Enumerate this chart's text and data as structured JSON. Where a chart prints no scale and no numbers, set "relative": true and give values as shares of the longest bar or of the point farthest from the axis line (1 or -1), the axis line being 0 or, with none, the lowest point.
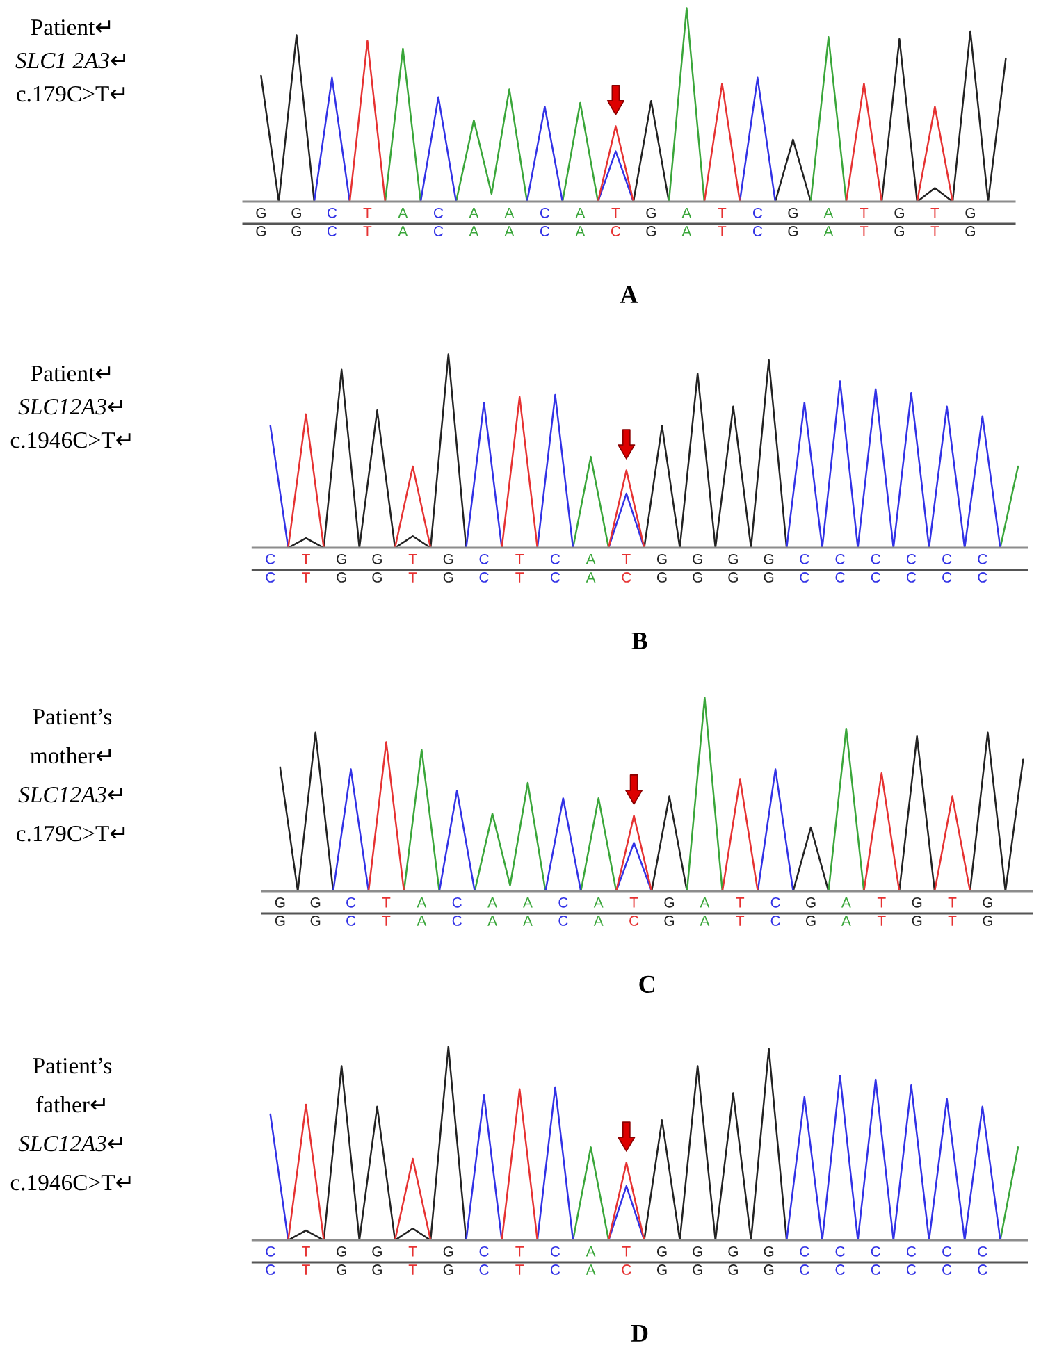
{
  "chart_data": [
    {
      "type": "line",
      "relative": true,
      "xlabel": "A",
      "annotations": [
        "Patient↵",
        "SLC1 2A3↵",
        "c.179C>T↵"
      ],
      "categories": [
        "G\nG",
        null,
        "G\nG",
        null,
        "C\nC",
        null,
        "T\nT",
        null,
        "A\nA",
        null,
        "C\nC",
        null,
        "A\nA",
        null,
        "A\nA",
        null,
        "C\nC",
        null,
        "A\nA",
        null,
        "T\nC",
        null,
        "G\nG",
        null,
        "A\nA",
        null,
        "T\nT",
        null,
        "C\nC",
        null,
        "G\nG",
        null,
        "A\nA",
        null,
        "T\nT",
        null,
        "G\nG",
        null,
        "T\nT",
        null,
        "G\nG",
        null,
        null
      ],
      "series": [
        {
          "color": "#222222",
          "values": [
            0.65,
            0,
            0.86,
            0,
            null,
            null,
            null,
            null,
            null,
            null,
            null,
            null,
            null,
            null,
            null,
            null,
            null,
            null,
            null,
            null,
            null,
            0,
            0.52,
            0,
            null,
            null,
            null,
            null,
            null,
            0,
            0.32,
            0,
            null,
            null,
            null,
            0,
            0.84,
            0,
            0.07,
            0,
            0.88,
            0,
            0.74
          ]
        },
        {
          "color": "#3aa63a",
          "values": [
            null,
            null,
            null,
            null,
            null,
            null,
            null,
            0,
            0.79,
            0,
            null,
            0,
            0.42,
            0.04,
            0.58,
            0,
            null,
            0,
            0.51,
            0,
            null,
            null,
            null,
            0,
            1,
            0,
            null,
            null,
            null,
            null,
            null,
            0,
            0.85,
            0,
            null,
            null,
            null,
            null,
            null,
            null,
            null,
            null,
            null
          ]
        },
        {
          "color": "#3232e6",
          "values": [
            null,
            null,
            null,
            0,
            0.64,
            0,
            null,
            null,
            null,
            0,
            0.54,
            0,
            null,
            null,
            null,
            0,
            0.49,
            0,
            null,
            0,
            0.26,
            0,
            null,
            null,
            null,
            null,
            null,
            0,
            0.64,
            0,
            null,
            null,
            null,
            null,
            null,
            null,
            null,
            null,
            null,
            null,
            null,
            null,
            null
          ]
        },
        {
          "color": "#e63232",
          "values": [
            null,
            null,
            null,
            null,
            null,
            0,
            0.83,
            0,
            null,
            null,
            null,
            null,
            null,
            null,
            null,
            null,
            null,
            null,
            null,
            0,
            0.39,
            0,
            null,
            null,
            null,
            0,
            0.61,
            0,
            null,
            null,
            null,
            null,
            null,
            0,
            0.61,
            0,
            null,
            0,
            0.49,
            0,
            null,
            null,
            null
          ]
        }
      ]
    },
    {
      "type": "line",
      "relative": true,
      "xlabel": "B",
      "annotations": [
        "Patient↵",
        "SLC12A3↵",
        "c.1946C>T↵"
      ],
      "categories": [
        "C\nC",
        null,
        "T\nT",
        null,
        "G\nG",
        null,
        "G\nG",
        null,
        "T\nT",
        null,
        "G\nG",
        null,
        "C\nC",
        null,
        "T\nT",
        null,
        "C\nC",
        null,
        "A\nA",
        null,
        "T\nC",
        null,
        "G\nG",
        null,
        "G\nG",
        null,
        "G\nG",
        null,
        "G\nG",
        null,
        "C\nC",
        null,
        "C\nC",
        null,
        "C\nC",
        null,
        "C\nC",
        null,
        "C\nC",
        null,
        "C\nC",
        null,
        null
      ],
      "series": [
        {
          "color": "#222222",
          "values": [
            null,
            0,
            0.05,
            0,
            0.92,
            0,
            0.71,
            0,
            0.06,
            0,
            1,
            0,
            null,
            null,
            null,
            null,
            null,
            null,
            null,
            null,
            null,
            0,
            0.63,
            0,
            0.9,
            0,
            0.73,
            0,
            0.97,
            0,
            null,
            null,
            null,
            null,
            null,
            null,
            null,
            null,
            null,
            null,
            null,
            null,
            null
          ]
        },
        {
          "color": "#3aa63a",
          "values": [
            null,
            null,
            null,
            null,
            null,
            null,
            null,
            null,
            null,
            null,
            null,
            null,
            null,
            null,
            null,
            null,
            null,
            0,
            0.47,
            0,
            null,
            null,
            null,
            null,
            null,
            null,
            null,
            null,
            null,
            null,
            null,
            null,
            null,
            null,
            null,
            null,
            null,
            null,
            null,
            null,
            null,
            0,
            0.42
          ]
        },
        {
          "color": "#3232e6",
          "values": [
            0.63,
            0,
            null,
            null,
            null,
            null,
            null,
            null,
            null,
            null,
            null,
            0,
            0.75,
            0,
            null,
            0,
            0.79,
            0,
            null,
            0,
            0.28,
            0,
            null,
            null,
            null,
            null,
            null,
            null,
            null,
            0,
            0.75,
            0,
            0.86,
            0,
            0.82,
            0,
            0.8,
            0,
            0.73,
            0,
            0.68,
            0,
            null
          ]
        },
        {
          "color": "#e63232",
          "values": [
            null,
            0,
            0.69,
            0,
            null,
            null,
            null,
            0,
            0.42,
            0,
            null,
            null,
            null,
            0,
            0.78,
            0,
            null,
            null,
            null,
            0,
            0.4,
            0,
            null,
            null,
            null,
            null,
            null,
            null,
            null,
            null,
            null,
            null,
            null,
            null,
            null,
            null,
            null,
            null,
            null,
            null,
            null,
            null,
            null
          ]
        }
      ]
    },
    {
      "type": "line",
      "relative": true,
      "xlabel": "C",
      "annotations": [
        "Patient’s",
        "mother↵",
        "SLC12A3↵",
        "c.179C>T↵"
      ],
      "categories": [
        "G\nG",
        null,
        "G\nG",
        null,
        "C\nC",
        null,
        "T\nT",
        null,
        "A\nA",
        null,
        "C\nC",
        null,
        "A\nA",
        null,
        "A\nA",
        null,
        "C\nC",
        null,
        "A\nA",
        null,
        "T\nC",
        null,
        "G\nG",
        null,
        "A\nA",
        null,
        "T\nT",
        null,
        "C\nC",
        null,
        "G\nG",
        null,
        "A\nA",
        null,
        "T\nT",
        null,
        "G\nG",
        null,
        "T\nT",
        null,
        "G\nG",
        null,
        null
      ],
      "series": [
        {
          "color": "#222222",
          "values": [
            0.64,
            0,
            0.82,
            0,
            null,
            null,
            null,
            null,
            null,
            null,
            null,
            null,
            null,
            null,
            null,
            null,
            null,
            null,
            null,
            null,
            null,
            0,
            0.49,
            0,
            null,
            null,
            null,
            null,
            null,
            0,
            0.33,
            0,
            null,
            null,
            null,
            0,
            0.8,
            0,
            null,
            0,
            0.82,
            0,
            0.68
          ]
        },
        {
          "color": "#3aa63a",
          "values": [
            null,
            null,
            null,
            null,
            null,
            null,
            null,
            0,
            0.73,
            0,
            null,
            0,
            0.4,
            0.03,
            0.56,
            0,
            null,
            0,
            0.48,
            0,
            null,
            null,
            null,
            0,
            1,
            0,
            null,
            null,
            null,
            null,
            null,
            0,
            0.84,
            0,
            null,
            null,
            null,
            null,
            null,
            null,
            null,
            null,
            null
          ]
        },
        {
          "color": "#3232e6",
          "values": [
            null,
            null,
            null,
            0,
            0.63,
            0,
            null,
            null,
            null,
            0,
            0.52,
            0,
            null,
            null,
            null,
            0,
            0.48,
            0,
            null,
            0,
            0.25,
            0,
            null,
            null,
            null,
            null,
            null,
            0,
            0.63,
            0,
            null,
            null,
            null,
            null,
            null,
            null,
            null,
            null,
            null,
            null,
            null,
            null,
            null
          ]
        },
        {
          "color": "#e63232",
          "values": [
            null,
            null,
            null,
            null,
            null,
            0,
            0.77,
            0,
            null,
            null,
            null,
            null,
            null,
            null,
            null,
            null,
            null,
            null,
            null,
            0,
            0.39,
            0,
            null,
            null,
            null,
            0,
            0.58,
            0,
            null,
            null,
            null,
            null,
            null,
            0,
            0.61,
            0,
            null,
            0,
            0.49,
            0,
            null,
            null,
            null
          ]
        }
      ]
    },
    {
      "type": "line",
      "relative": true,
      "xlabel": "D",
      "annotations": [
        "Patient’s",
        "father↵",
        "SLC12A3↵",
        "c.1946C>T↵"
      ],
      "categories": [
        "C\nC",
        null,
        "T\nT",
        null,
        "G\nG",
        null,
        "G\nG",
        null,
        "T\nT",
        null,
        "G\nG",
        null,
        "C\nC",
        null,
        "T\nT",
        null,
        "C\nC",
        null,
        "A\nA",
        null,
        "T\nC",
        null,
        "G\nG",
        null,
        "G\nG",
        null,
        "G\nG",
        null,
        "G\nG",
        null,
        "C\nC",
        null,
        "C\nC",
        null,
        "C\nC",
        null,
        "C\nC",
        null,
        "C\nC",
        null,
        "C\nC",
        null,
        null
      ],
      "series": [
        {
          "color": "#222222",
          "values": [
            null,
            0,
            0.05,
            0,
            0.9,
            0,
            0.69,
            0,
            0.06,
            0,
            1,
            0,
            null,
            null,
            null,
            null,
            null,
            null,
            null,
            null,
            null,
            0,
            0.62,
            0,
            0.9,
            0,
            0.76,
            0,
            0.99,
            0,
            null,
            null,
            null,
            null,
            null,
            null,
            null,
            null,
            null,
            null,
            null,
            null,
            null
          ]
        },
        {
          "color": "#3aa63a",
          "values": [
            null,
            null,
            null,
            null,
            null,
            null,
            null,
            null,
            null,
            null,
            null,
            null,
            null,
            null,
            null,
            null,
            null,
            0,
            0.48,
            0,
            null,
            null,
            null,
            null,
            null,
            null,
            null,
            null,
            null,
            null,
            null,
            null,
            null,
            null,
            null,
            null,
            null,
            null,
            null,
            null,
            null,
            0,
            0.48
          ]
        },
        {
          "color": "#3232e6",
          "values": [
            0.65,
            0,
            null,
            null,
            null,
            null,
            null,
            null,
            null,
            null,
            null,
            0,
            0.75,
            0,
            null,
            0,
            0.79,
            0,
            null,
            0,
            0.28,
            0,
            null,
            null,
            null,
            null,
            null,
            null,
            null,
            0,
            0.74,
            0,
            0.85,
            0,
            0.83,
            0,
            0.8,
            0,
            0.73,
            0,
            0.69,
            0,
            null
          ]
        },
        {
          "color": "#e63232",
          "values": [
            null,
            0,
            0.7,
            0,
            null,
            null,
            null,
            0,
            0.42,
            0,
            null,
            null,
            null,
            0,
            0.78,
            0,
            null,
            null,
            null,
            0,
            0.4,
            0,
            null,
            null,
            null,
            null,
            null,
            null,
            null,
            null,
            null,
            null,
            null,
            null,
            null,
            null,
            null,
            null,
            null,
            null,
            null,
            null,
            null
          ]
        }
      ]
    }
  ]
}
